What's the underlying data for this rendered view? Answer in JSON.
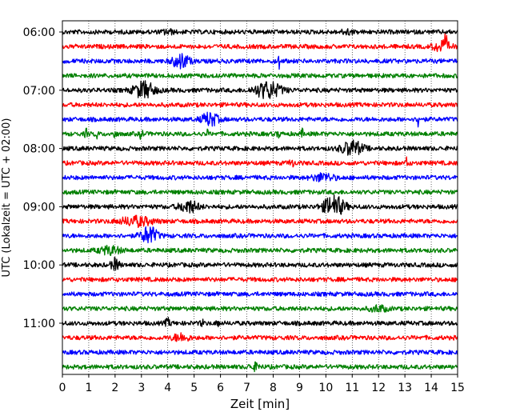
{
  "chart_data": {
    "type": "line",
    "title": "",
    "xlabel": "Zeit  [min]",
    "ylabel": "UTC (Lokalzeit = UTC + 02:00)",
    "xlim": [
      0,
      15
    ],
    "x_ticks": [
      "0",
      "1",
      "2",
      "3",
      "4",
      "5",
      "6",
      "7",
      "8",
      "9",
      "10",
      "11",
      "12",
      "13",
      "14",
      "15"
    ],
    "y_ticks": [
      "06:00",
      "07:00",
      "08:00",
      "09:00",
      "10:00",
      "11:00"
    ],
    "grid": "vertical dotted",
    "trace_minutes": 15,
    "colors": [
      "#000000",
      "#ff0000",
      "#0000ff",
      "#008000"
    ],
    "traces": [
      {
        "start": "06:00",
        "color": "#000000",
        "events": [
          {
            "t": 4.0,
            "a": 0.3,
            "w": 0.2
          },
          {
            "t": 10.8,
            "a": 0.3,
            "w": 0.2
          }
        ]
      },
      {
        "start": "06:15",
        "color": "#ff0000",
        "events": [
          {
            "t": 14.4,
            "a": 0.8,
            "w": 0.3
          },
          {
            "t": 14.55,
            "a": 1.1,
            "w": 0.05
          }
        ]
      },
      {
        "start": "06:30",
        "color": "#0000ff",
        "events": [
          {
            "t": 4.5,
            "a": 1.0,
            "w": 0.3
          },
          {
            "t": 8.2,
            "a": 1.6,
            "w": 0.04
          }
        ]
      },
      {
        "start": "06:45",
        "color": "#008000",
        "events": []
      },
      {
        "start": "07:00",
        "color": "#000000",
        "events": [
          {
            "t": 3.1,
            "a": 1.1,
            "w": 0.4
          },
          {
            "t": 7.8,
            "a": 1.1,
            "w": 0.5
          }
        ]
      },
      {
        "start": "07:15",
        "color": "#ff0000",
        "events": []
      },
      {
        "start": "07:30",
        "color": "#0000ff",
        "events": [
          {
            "t": 5.6,
            "a": 0.9,
            "w": 0.3
          },
          {
            "t": 13.5,
            "a": 1.2,
            "w": 0.04
          }
        ]
      },
      {
        "start": "07:45",
        "color": "#008000",
        "events": [
          {
            "t": 0.9,
            "a": 0.6,
            "w": 0.05
          },
          {
            "t": 1.3,
            "a": 0.6,
            "w": 0.05
          },
          {
            "t": 2.0,
            "a": 0.7,
            "w": 0.05
          },
          {
            "t": 3.0,
            "a": 0.9,
            "w": 0.05
          },
          {
            "t": 5.5,
            "a": 0.4,
            "w": 0.05
          },
          {
            "t": 8.2,
            "a": 0.5,
            "w": 0.05
          },
          {
            "t": 9.1,
            "a": 0.5,
            "w": 0.05
          }
        ]
      },
      {
        "start": "08:00",
        "color": "#000000",
        "events": [
          {
            "t": 11.0,
            "a": 1.0,
            "w": 0.4
          }
        ]
      },
      {
        "start": "08:15",
        "color": "#ff0000",
        "events": [
          {
            "t": 8.7,
            "a": 0.4,
            "w": 0.1
          },
          {
            "t": 13.1,
            "a": 1.1,
            "w": 0.05
          }
        ]
      },
      {
        "start": "08:30",
        "color": "#0000ff",
        "events": [
          {
            "t": 9.9,
            "a": 0.5,
            "w": 0.4
          }
        ]
      },
      {
        "start": "08:45",
        "color": "#008000",
        "events": []
      },
      {
        "start": "09:00",
        "color": "#000000",
        "events": [
          {
            "t": 4.8,
            "a": 0.8,
            "w": 0.35
          },
          {
            "t": 10.3,
            "a": 1.4,
            "w": 0.4
          }
        ]
      },
      {
        "start": "09:15",
        "color": "#ff0000",
        "events": [
          {
            "t": 2.8,
            "a": 0.6,
            "w": 0.6
          }
        ]
      },
      {
        "start": "09:30",
        "color": "#0000ff",
        "events": [
          {
            "t": 3.3,
            "a": 1.2,
            "w": 0.3
          }
        ]
      },
      {
        "start": "09:45",
        "color": "#008000",
        "events": [
          {
            "t": 1.8,
            "a": 0.5,
            "w": 0.4
          }
        ]
      },
      {
        "start": "10:00",
        "color": "#000000",
        "events": [
          {
            "t": 2.0,
            "a": 0.8,
            "w": 0.15
          }
        ]
      },
      {
        "start": "10:15",
        "color": "#ff0000",
        "events": []
      },
      {
        "start": "10:30",
        "color": "#0000ff",
        "events": []
      },
      {
        "start": "10:45",
        "color": "#008000",
        "events": [
          {
            "t": 12.0,
            "a": 0.4,
            "w": 0.3
          }
        ]
      },
      {
        "start": "11:00",
        "color": "#000000",
        "events": [
          {
            "t": 4.0,
            "a": 0.5,
            "w": 0.1
          },
          {
            "t": 5.3,
            "a": 0.5,
            "w": 0.05
          },
          {
            "t": 5.9,
            "a": 0.5,
            "w": 0.05
          }
        ]
      },
      {
        "start": "11:15",
        "color": "#ff0000",
        "events": [
          {
            "t": 4.5,
            "a": 0.5,
            "w": 0.3
          }
        ]
      },
      {
        "start": "11:30",
        "color": "#0000ff",
        "events": []
      },
      {
        "start": "11:45",
        "color": "#008000",
        "events": [
          {
            "t": 7.3,
            "a": 0.4,
            "w": 0.2
          }
        ]
      }
    ]
  }
}
